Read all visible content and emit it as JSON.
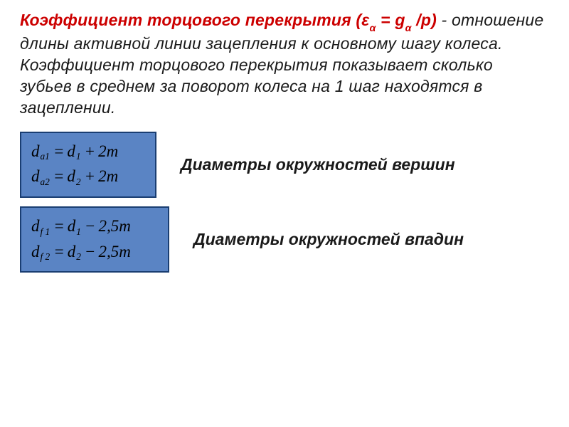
{
  "heading": {
    "title_prefix": "Коэффициент торцового перекрытия (",
    "epsilon": "ε",
    "alpha1": "α",
    "eq": " = g",
    "alpha2": "α",
    "over_p": " /p)",
    "after": " - отношение длины активной линии зацепления к основному шагу колеса.",
    "line2": "Коэффициент торцового перекрытия показывает сколько зубьев в среднем за поворот колеса на 1 шаг находятся в зацеплении."
  },
  "group1": {
    "f1": {
      "lhs_d": "d",
      "lhs_sub": "a1",
      "eq": "=",
      "rhs_d": "d",
      "rhs_sub": "1",
      "op": "+",
      "tail": "2m"
    },
    "f2": {
      "lhs_d": "d",
      "lhs_sub": "a2",
      "eq": "=",
      "rhs_d": "d",
      "rhs_sub": "2",
      "op": "+",
      "tail": "2m"
    },
    "label": "Диаметры окружностей вершин"
  },
  "group2": {
    "f1": {
      "lhs_d": "d",
      "lhs_sub": "f 1",
      "eq": "=",
      "rhs_d": "d",
      "rhs_sub": "1",
      "op": "−",
      "tail": "2,5m"
    },
    "f2": {
      "lhs_d": "d",
      "lhs_sub": "f 2",
      "eq": "=",
      "rhs_d": "d",
      "rhs_sub": "2",
      "op": "−",
      "tail": "2,5m"
    },
    "label": "Диаметры окружностей впадин"
  },
  "colors": {
    "title": "#cc0000",
    "text": "#1a1a1a",
    "box_bg": "#5a84c4",
    "box_border": "#1a3e72",
    "background": "#ffffff"
  }
}
